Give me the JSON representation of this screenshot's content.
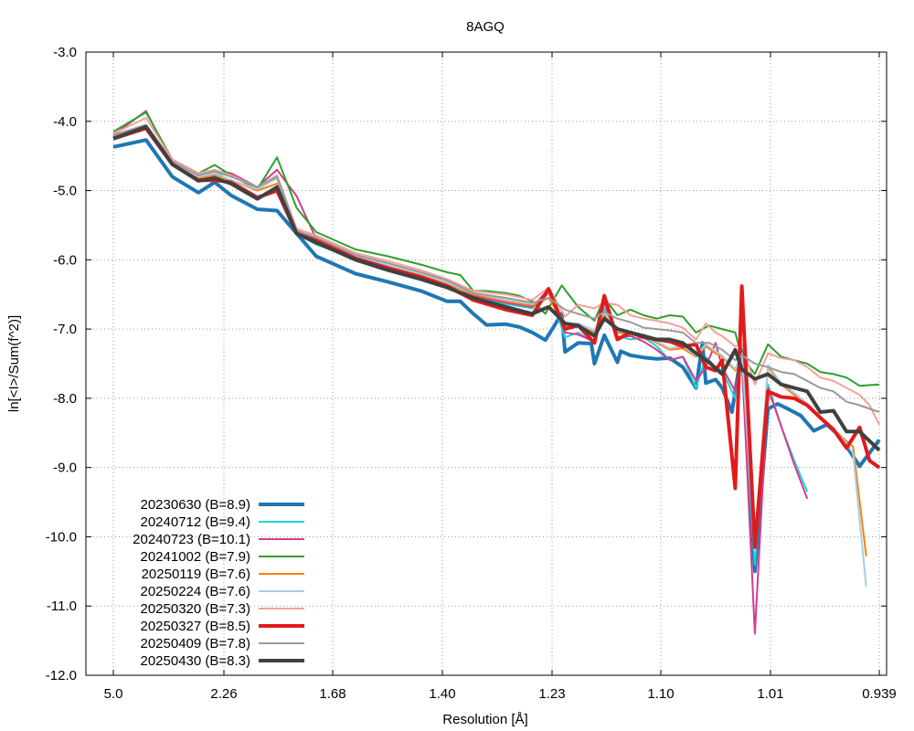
{
  "chart_data": {
    "type": "line",
    "title": "8AGQ",
    "xlabel": "Resolution [Å]",
    "ylabel": "ln[<I>/Sum(f^2)]",
    "ylim": [
      -12.0,
      -3.0
    ],
    "yticks": [
      "-3.0",
      "-4.0",
      "-5.0",
      "-6.0",
      "-7.0",
      "-8.0",
      "-9.0",
      "-10.0",
      "-11.0",
      "-12.0"
    ],
    "xticks": [
      "5.0",
      "2.26",
      "1.68",
      "1.40",
      "1.23",
      "1.10",
      "1.01",
      "0.939"
    ],
    "x_scale": "1/d^2",
    "xlim_inv_d2": [
      0.0,
      1.173
    ],
    "grid": true,
    "legend_position": "bottom-left",
    "colors": {
      "s1": "#1f77b4",
      "s2": "#17d7d7",
      "s3": "#d63a8f",
      "s4": "#2ca02c",
      "s5": "#ff7f0e",
      "s6": "#a6cee3",
      "s7": "#f4a09a",
      "s8": "#e31a1c",
      "s9": "#9a9a9a",
      "s10": "#404040"
    },
    "series": [
      {
        "name": "20230630 (B=8.9)",
        "color": "#1f77b4",
        "width": 4,
        "x": [
          0.0,
          0.05,
          0.09,
          0.13,
          0.155,
          0.18,
          0.22,
          0.25,
          0.28,
          0.31,
          0.37,
          0.42,
          0.47,
          0.51,
          0.53,
          0.55,
          0.57,
          0.6,
          0.62,
          0.64,
          0.66,
          0.685,
          0.69,
          0.71,
          0.73,
          0.735,
          0.75,
          0.77,
          0.775,
          0.79,
          0.81,
          0.83,
          0.85,
          0.87,
          0.89,
          0.9,
          0.905,
          0.92,
          0.93,
          0.945,
          0.96,
          0.98,
          1.0,
          1.015,
          1.03,
          1.05,
          1.07,
          1.09,
          1.11,
          1.14,
          1.17
        ],
        "y": [
          -4.37,
          -4.27,
          -4.8,
          -5.03,
          -4.88,
          -5.07,
          -5.27,
          -5.29,
          -5.62,
          -5.95,
          -6.2,
          -6.32,
          -6.45,
          -6.6,
          -6.6,
          -6.78,
          -6.94,
          -6.93,
          -6.97,
          -7.05,
          -7.16,
          -6.78,
          -7.33,
          -7.2,
          -7.21,
          -7.5,
          -7.09,
          -7.48,
          -7.32,
          -7.38,
          -7.41,
          -7.43,
          -7.42,
          -7.55,
          -7.85,
          -7.2,
          -7.78,
          -7.73,
          -7.85,
          -8.2,
          -7.3,
          -10.5,
          -8.15,
          -8.08,
          -8.15,
          -8.25,
          -8.47,
          -8.38,
          -8.55,
          -8.98,
          -8.6
        ]
      },
      {
        "name": "20240712 (B=9.4)",
        "color": "#17d7d7",
        "width": 2,
        "x": [
          0.0,
          0.05,
          0.09,
          0.13,
          0.155,
          0.18,
          0.22,
          0.25,
          0.28,
          0.31,
          0.37,
          0.42,
          0.47,
          0.51,
          0.55,
          0.6,
          0.64,
          0.665,
          0.69,
          0.71,
          0.735,
          0.75,
          0.77,
          0.79,
          0.81,
          0.83,
          0.85,
          0.87,
          0.89,
          0.905,
          0.92,
          0.93,
          0.95,
          0.96,
          0.98,
          1.0,
          1.02,
          1.04,
          1.06
        ],
        "y": [
          -4.22,
          -4.08,
          -4.62,
          -4.8,
          -4.75,
          -4.78,
          -4.98,
          -4.82,
          -5.62,
          -5.78,
          -5.98,
          -6.12,
          -6.25,
          -6.4,
          -6.55,
          -6.64,
          -6.7,
          -6.45,
          -7.12,
          -7.05,
          -7.2,
          -6.7,
          -7.1,
          -7.15,
          -7.12,
          -7.25,
          -7.45,
          -7.4,
          -7.85,
          -7.4,
          -7.55,
          -7.6,
          -8.0,
          -7.5,
          -10.4,
          -7.8,
          -8.4,
          -8.9,
          -9.35
        ]
      },
      {
        "name": "20240723 (B=10.1)",
        "color": "#d63a8f",
        "width": 2,
        "x": [
          0.0,
          0.05,
          0.09,
          0.13,
          0.155,
          0.18,
          0.22,
          0.25,
          0.28,
          0.31,
          0.37,
          0.42,
          0.47,
          0.51,
          0.55,
          0.6,
          0.64,
          0.665,
          0.69,
          0.71,
          0.735,
          0.75,
          0.77,
          0.79,
          0.81,
          0.83,
          0.85,
          0.87,
          0.89,
          0.905,
          0.92,
          0.93,
          0.95,
          0.96,
          0.98,
          1.0,
          1.02,
          1.04,
          1.06
        ],
        "y": [
          -4.2,
          -3.85,
          -4.6,
          -4.78,
          -4.72,
          -4.75,
          -4.95,
          -4.7,
          -5.08,
          -5.7,
          -5.95,
          -6.1,
          -6.24,
          -6.4,
          -6.52,
          -6.62,
          -6.68,
          -6.42,
          -7.05,
          -7.08,
          -7.18,
          -6.62,
          -7.12,
          -7.1,
          -7.18,
          -7.3,
          -7.45,
          -7.4,
          -7.75,
          -7.55,
          -7.2,
          -7.55,
          -7.9,
          -7.4,
          -11.4,
          -7.85,
          -8.4,
          -8.95,
          -9.45
        ]
      },
      {
        "name": "20241002 (B=7.9)",
        "color": "#2ca02c",
        "width": 2,
        "x": [
          0.0,
          0.05,
          0.09,
          0.13,
          0.155,
          0.18,
          0.22,
          0.25,
          0.28,
          0.31,
          0.37,
          0.42,
          0.47,
          0.51,
          0.53,
          0.55,
          0.57,
          0.6,
          0.62,
          0.64,
          0.66,
          0.685,
          0.71,
          0.735,
          0.75,
          0.77,
          0.79,
          0.81,
          0.83,
          0.85,
          0.87,
          0.89,
          0.91,
          0.93,
          0.95,
          0.96,
          0.98,
          1.0,
          1.02,
          1.04,
          1.06,
          1.08,
          1.1,
          1.12,
          1.14,
          1.17
        ],
        "y": [
          -4.15,
          -3.87,
          -4.55,
          -4.75,
          -4.63,
          -4.78,
          -4.98,
          -4.52,
          -5.25,
          -5.6,
          -5.85,
          -5.95,
          -6.07,
          -6.18,
          -6.22,
          -6.45,
          -6.45,
          -6.48,
          -6.52,
          -6.6,
          -6.78,
          -6.37,
          -6.68,
          -6.88,
          -6.55,
          -6.8,
          -6.72,
          -6.8,
          -6.85,
          -6.8,
          -6.82,
          -7.05,
          -6.95,
          -7.0,
          -7.05,
          -7.4,
          -7.65,
          -7.22,
          -7.4,
          -7.45,
          -7.5,
          -7.62,
          -7.65,
          -7.7,
          -7.82,
          -7.8
        ]
      },
      {
        "name": "20250119 (B=7.6)",
        "color": "#ff7f0e",
        "width": 2,
        "x": [
          0.0,
          0.05,
          0.09,
          0.13,
          0.155,
          0.18,
          0.22,
          0.25,
          0.28,
          0.31,
          0.37,
          0.42,
          0.47,
          0.51,
          0.55,
          0.6,
          0.64,
          0.665,
          0.69,
          0.71,
          0.735,
          0.75,
          0.77,
          0.79,
          0.81,
          0.83,
          0.85,
          0.87,
          0.89,
          0.905,
          0.92,
          0.93,
          0.95,
          0.96,
          0.98,
          1.0,
          1.02,
          1.04,
          1.06,
          1.08,
          1.1,
          1.12,
          1.13,
          1.15
        ],
        "y": [
          -4.22,
          -4.08,
          -4.62,
          -4.82,
          -4.78,
          -4.85,
          -5.0,
          -4.9,
          -5.6,
          -5.72,
          -5.97,
          -6.1,
          -6.22,
          -6.35,
          -6.5,
          -6.6,
          -6.66,
          -6.55,
          -6.95,
          -6.95,
          -7.05,
          -6.8,
          -7.05,
          -7.08,
          -7.1,
          -7.2,
          -7.3,
          -7.28,
          -7.4,
          -7.25,
          -7.35,
          -7.4,
          -7.6,
          -7.38,
          -10.1,
          -7.55,
          -7.8,
          -7.95,
          -8.1,
          -8.3,
          -8.45,
          -8.62,
          -8.7,
          -10.28
        ]
      },
      {
        "name": "20250224 (B=7.6)",
        "color": "#a6cee3",
        "width": 2,
        "x": [
          0.0,
          0.05,
          0.09,
          0.13,
          0.155,
          0.18,
          0.22,
          0.25,
          0.28,
          0.31,
          0.37,
          0.42,
          0.47,
          0.51,
          0.55,
          0.6,
          0.64,
          0.665,
          0.69,
          0.71,
          0.735,
          0.75,
          0.77,
          0.79,
          0.81,
          0.83,
          0.85,
          0.87,
          0.89,
          0.905,
          0.92,
          0.93,
          0.95,
          0.96,
          0.98,
          1.0,
          1.02,
          1.04,
          1.06,
          1.08,
          1.1,
          1.12,
          1.13,
          1.15
        ],
        "y": [
          -4.2,
          -4.05,
          -4.6,
          -4.8,
          -4.75,
          -4.85,
          -4.98,
          -4.82,
          -5.58,
          -5.7,
          -5.95,
          -6.08,
          -6.2,
          -6.33,
          -6.48,
          -6.58,
          -6.64,
          -6.5,
          -6.92,
          -6.92,
          -7.02,
          -6.75,
          -7.02,
          -7.05,
          -7.08,
          -7.18,
          -7.28,
          -7.25,
          -7.38,
          -7.22,
          -7.32,
          -7.38,
          -7.58,
          -7.35,
          -10.2,
          -7.52,
          -7.78,
          -7.92,
          -8.08,
          -8.28,
          -8.45,
          -8.65,
          -8.8,
          -10.72
        ]
      },
      {
        "name": "20250320 (B=7.3)",
        "color": "#f4a09a",
        "width": 2,
        "x": [
          0.0,
          0.05,
          0.09,
          0.13,
          0.155,
          0.18,
          0.22,
          0.25,
          0.28,
          0.31,
          0.37,
          0.42,
          0.47,
          0.51,
          0.55,
          0.6,
          0.64,
          0.665,
          0.69,
          0.71,
          0.735,
          0.75,
          0.77,
          0.79,
          0.81,
          0.83,
          0.85,
          0.87,
          0.89,
          0.905,
          0.92,
          0.93,
          0.95,
          0.96,
          0.98,
          1.0,
          1.02,
          1.04,
          1.06,
          1.08,
          1.1,
          1.12,
          1.14,
          1.155,
          1.17
        ],
        "y": [
          -4.18,
          -3.95,
          -4.55,
          -4.75,
          -4.7,
          -4.78,
          -4.95,
          -4.78,
          -5.55,
          -5.65,
          -5.9,
          -6.02,
          -6.15,
          -6.28,
          -6.45,
          -6.5,
          -6.58,
          -6.4,
          -6.82,
          -6.65,
          -6.7,
          -6.62,
          -6.65,
          -6.8,
          -6.85,
          -6.88,
          -6.92,
          -6.98,
          -7.15,
          -6.92,
          -7.05,
          -7.1,
          -7.25,
          -7.22,
          -7.8,
          -7.35,
          -7.42,
          -7.45,
          -7.55,
          -7.7,
          -7.75,
          -7.85,
          -7.95,
          -8.1,
          -8.38
        ]
      },
      {
        "name": "20250327 (B=8.5)",
        "color": "#e31a1c",
        "width": 4,
        "x": [
          0.0,
          0.05,
          0.09,
          0.13,
          0.155,
          0.18,
          0.22,
          0.25,
          0.28,
          0.31,
          0.37,
          0.42,
          0.47,
          0.51,
          0.55,
          0.6,
          0.64,
          0.665,
          0.69,
          0.71,
          0.735,
          0.75,
          0.77,
          0.79,
          0.81,
          0.83,
          0.85,
          0.87,
          0.89,
          0.905,
          0.92,
          0.93,
          0.95,
          0.96,
          0.98,
          1.0,
          1.02,
          1.04,
          1.06,
          1.08,
          1.1,
          1.12,
          1.14,
          1.155,
          1.17
        ],
        "y": [
          -4.25,
          -4.1,
          -4.62,
          -4.85,
          -4.85,
          -4.88,
          -5.1,
          -5.0,
          -5.62,
          -5.72,
          -5.98,
          -6.12,
          -6.25,
          -6.38,
          -6.58,
          -6.72,
          -6.8,
          -6.42,
          -7.0,
          -6.95,
          -7.2,
          -6.52,
          -7.15,
          -7.05,
          -7.12,
          -7.15,
          -7.18,
          -7.25,
          -7.22,
          -7.55,
          -7.6,
          -7.45,
          -9.3,
          -6.38,
          -10.15,
          -7.9,
          -7.98,
          -8.0,
          -8.1,
          -8.28,
          -8.45,
          -8.72,
          -8.42,
          -8.9,
          -9.0
        ]
      },
      {
        "name": "20250409 (B=7.8)",
        "color": "#9a9a9a",
        "width": 2,
        "x": [
          0.0,
          0.05,
          0.09,
          0.13,
          0.155,
          0.18,
          0.22,
          0.25,
          0.28,
          0.31,
          0.37,
          0.42,
          0.47,
          0.51,
          0.55,
          0.6,
          0.64,
          0.665,
          0.69,
          0.71,
          0.735,
          0.75,
          0.77,
          0.79,
          0.81,
          0.83,
          0.85,
          0.87,
          0.89,
          0.91,
          0.93,
          0.95,
          0.96,
          0.98,
          1.0,
          1.02,
          1.04,
          1.06,
          1.08,
          1.1,
          1.12,
          1.14,
          1.17
        ],
        "y": [
          -4.2,
          -4.05,
          -4.58,
          -4.78,
          -4.72,
          -4.8,
          -4.95,
          -4.8,
          -5.58,
          -5.68,
          -5.93,
          -6.05,
          -6.18,
          -6.3,
          -6.48,
          -6.55,
          -6.62,
          -6.55,
          -6.72,
          -6.78,
          -6.85,
          -6.75,
          -6.85,
          -6.9,
          -6.98,
          -7.0,
          -7.02,
          -7.05,
          -7.2,
          -7.2,
          -7.3,
          -7.45,
          -7.38,
          -7.5,
          -7.55,
          -7.62,
          -7.65,
          -7.75,
          -7.85,
          -7.9,
          -8.05,
          -8.1,
          -8.2
        ]
      },
      {
        "name": "20250430 (B=8.3)",
        "color": "#404040",
        "width": 4,
        "x": [
          0.0,
          0.05,
          0.09,
          0.13,
          0.155,
          0.18,
          0.22,
          0.25,
          0.28,
          0.31,
          0.37,
          0.42,
          0.47,
          0.51,
          0.55,
          0.6,
          0.64,
          0.665,
          0.69,
          0.71,
          0.735,
          0.75,
          0.77,
          0.79,
          0.81,
          0.83,
          0.85,
          0.87,
          0.89,
          0.91,
          0.93,
          0.95,
          0.96,
          0.98,
          1.0,
          1.02,
          1.04,
          1.06,
          1.08,
          1.1,
          1.12,
          1.14,
          1.17
        ],
        "y": [
          -4.25,
          -4.08,
          -4.62,
          -4.86,
          -4.82,
          -4.9,
          -5.12,
          -4.95,
          -5.62,
          -5.75,
          -6.0,
          -6.15,
          -6.28,
          -6.4,
          -6.55,
          -6.68,
          -6.78,
          -6.68,
          -6.92,
          -6.95,
          -7.1,
          -6.85,
          -7.0,
          -7.05,
          -7.1,
          -7.15,
          -7.15,
          -7.2,
          -7.35,
          -7.48,
          -7.65,
          -7.3,
          -7.58,
          -7.72,
          -7.65,
          -7.8,
          -7.85,
          -7.9,
          -8.2,
          -8.18,
          -8.48,
          -8.48,
          -8.75
        ]
      }
    ]
  }
}
